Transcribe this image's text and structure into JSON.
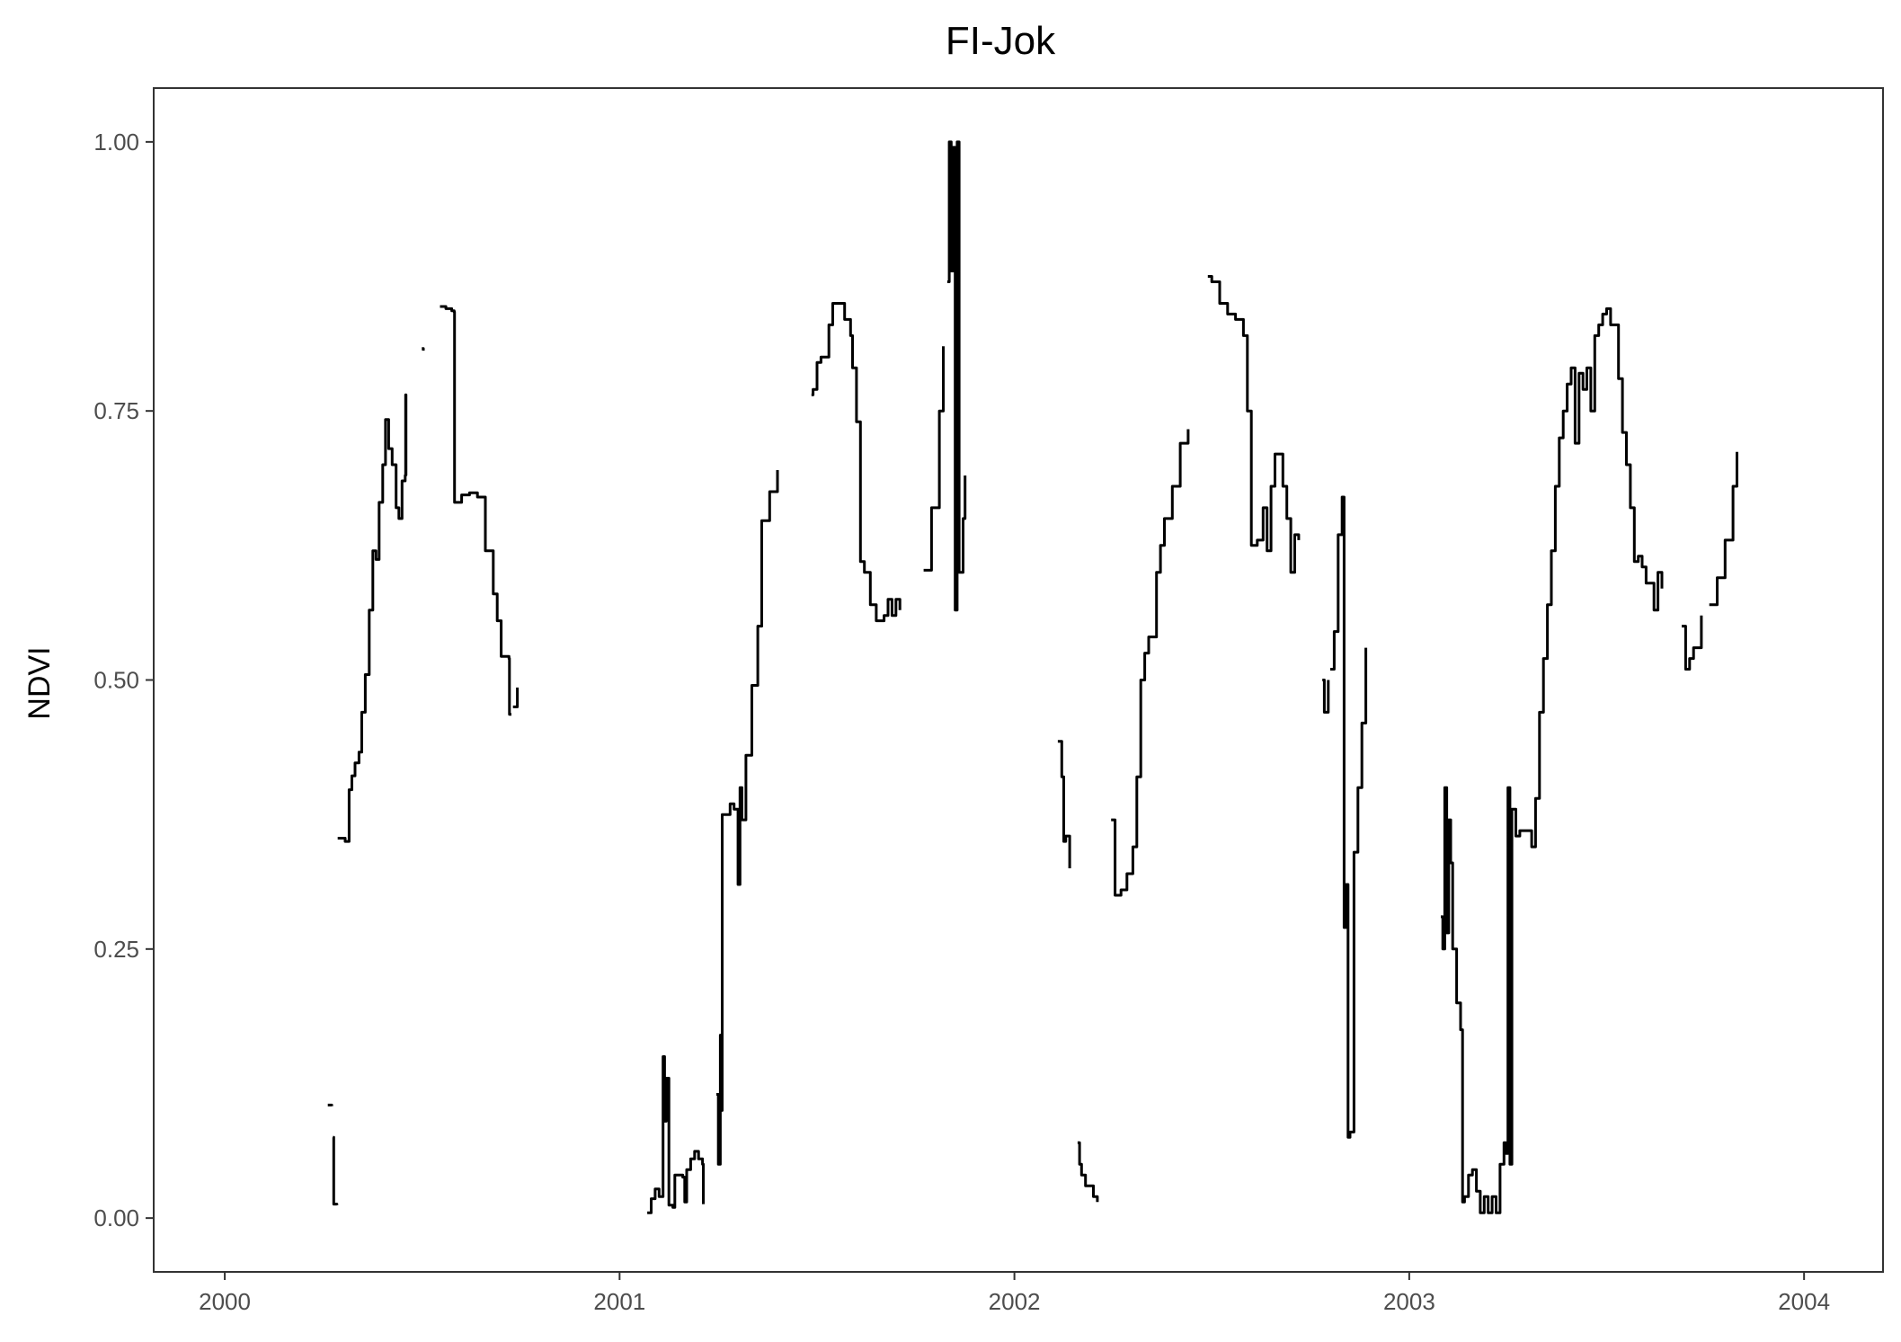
{
  "chart_data": {
    "type": "line",
    "title": "FI-Jok",
    "xlabel": "",
    "ylabel": "NDVI",
    "x_ticks": [
      "2000",
      "2001",
      "2002",
      "2003",
      "2004"
    ],
    "y_ticks": [
      "0.00",
      "0.25",
      "0.50",
      "0.75",
      "1.00"
    ],
    "xlim": [
      1999.82,
      2004.2
    ],
    "ylim": [
      -0.05,
      1.05
    ],
    "grid": false,
    "legend": "none",
    "line_color": "#000000",
    "series": [
      {
        "segments": [
          [
            [
              2000.261,
              0.105
            ],
            [
              2000.271,
              0.104
            ]
          ],
          [
            [
              2000.274,
              0.075
            ],
            [
              2000.276,
              0.013
            ],
            [
              2000.284,
              0.012
            ]
          ],
          [
            [
              2000.286,
              0.353
            ],
            [
              2000.305,
              0.35
            ],
            [
              2000.315,
              0.398
            ],
            [
              2000.322,
              0.411
            ],
            [
              2000.33,
              0.423
            ],
            [
              2000.34,
              0.433
            ],
            [
              2000.347,
              0.47
            ],
            [
              2000.356,
              0.505
            ],
            [
              2000.366,
              0.565
            ],
            [
              2000.375,
              0.62
            ],
            [
              2000.383,
              0.612
            ],
            [
              2000.391,
              0.665
            ],
            [
              2000.4,
              0.7
            ],
            [
              2000.407,
              0.742
            ],
            [
              2000.415,
              0.715
            ],
            [
              2000.424,
              0.7
            ],
            [
              2000.434,
              0.66
            ],
            [
              2000.441,
              0.65
            ],
            [
              2000.449,
              0.685
            ],
            [
              2000.457,
              0.69
            ],
            [
              2000.458,
              0.765
            ],
            [
              2000.459,
              0.69
            ]
          ],
          [
            [
              2000.499,
              0.808
            ],
            [
              2000.503,
              0.806
            ]
          ],
          [
            [
              2000.545,
              0.847
            ],
            [
              2000.56,
              0.845
            ],
            [
              2000.575,
              0.843
            ],
            [
              2000.581,
              0.842
            ],
            [
              2000.582,
              0.665
            ],
            [
              2000.6,
              0.672
            ],
            [
              2000.62,
              0.674
            ],
            [
              2000.64,
              0.67
            ],
            [
              2000.66,
              0.62
            ],
            [
              2000.68,
              0.58
            ],
            [
              2000.69,
              0.555
            ],
            [
              2000.7,
              0.522
            ],
            [
              2000.72,
              0.52
            ],
            [
              2000.721,
              0.468
            ],
            [
              2000.726,
              0.468
            ]
          ],
          [
            [
              2000.73,
              0.475
            ],
            [
              2000.741,
              0.493
            ]
          ]
        ]
      },
      {
        "segments": [
          [
            [
              2001.07,
              0.005
            ],
            [
              2001.08,
              0.018
            ],
            [
              2001.09,
              0.027
            ],
            [
              2001.1,
              0.02
            ],
            [
              2001.11,
              0.15
            ],
            [
              2001.114,
              0.09
            ],
            [
              2001.118,
              0.13
            ],
            [
              2001.125,
              0.012
            ],
            [
              2001.135,
              0.01
            ],
            [
              2001.14,
              0.04
            ],
            [
              2001.16,
              0.038
            ],
            [
              2001.165,
              0.015
            ],
            [
              2001.17,
              0.045
            ],
            [
              2001.18,
              0.055
            ],
            [
              2001.19,
              0.062
            ],
            [
              2001.2,
              0.055
            ],
            [
              2001.21,
              0.05
            ],
            [
              2001.212,
              0.013
            ]
          ],
          [
            [
              2001.245,
              0.115
            ],
            [
              2001.25,
              0.05
            ],
            [
              2001.255,
              0.17
            ],
            [
              2001.258,
              0.1
            ],
            [
              2001.26,
              0.375
            ],
            [
              2001.28,
              0.385
            ],
            [
              2001.29,
              0.38
            ],
            [
              2001.3,
              0.31
            ],
            [
              2001.305,
              0.4
            ],
            [
              2001.31,
              0.37
            ],
            [
              2001.32,
              0.43
            ],
            [
              2001.335,
              0.495
            ],
            [
              2001.35,
              0.55
            ],
            [
              2001.36,
              0.648
            ],
            [
              2001.38,
              0.675
            ],
            [
              2001.4,
              0.695
            ]
          ],
          [
            [
              2001.486,
              0.765
            ],
            [
              2001.49,
              0.77
            ],
            [
              2001.5,
              0.795
            ],
            [
              2001.51,
              0.8
            ],
            [
              2001.52,
              0.8
            ],
            [
              2001.53,
              0.83
            ],
            [
              2001.54,
              0.85
            ],
            [
              2001.56,
              0.85
            ],
            [
              2001.57,
              0.835
            ],
            [
              2001.585,
              0.82
            ],
            [
              2001.59,
              0.79
            ],
            [
              2001.6,
              0.74
            ],
            [
              2001.61,
              0.61
            ],
            [
              2001.62,
              0.6
            ],
            [
              2001.635,
              0.57
            ],
            [
              2001.65,
              0.555
            ],
            [
              2001.67,
              0.56
            ],
            [
              2001.68,
              0.575
            ],
            [
              2001.69,
              0.56
            ],
            [
              2001.7,
              0.575
            ],
            [
              2001.71,
              0.565
            ]
          ],
          [
            [
              2001.77,
              0.602
            ],
            [
              2001.79,
              0.66
            ],
            [
              2001.81,
              0.75
            ],
            [
              2001.82,
              0.81
            ]
          ],
          [
            [
              2001.83,
              0.87
            ],
            [
              2001.835,
              1.0
            ],
            [
              2001.84,
              0.88
            ],
            [
              2001.845,
              0.995
            ],
            [
              2001.85,
              0.565
            ],
            [
              2001.855,
              1.0
            ],
            [
              2001.86,
              0.6
            ],
            [
              2001.87,
              0.65
            ],
            [
              2001.875,
              0.69
            ]
          ]
        ]
      },
      {
        "segments": [
          [
            [
              2002.11,
              0.443
            ],
            [
              2002.12,
              0.41
            ],
            [
              2002.125,
              0.35
            ],
            [
              2002.13,
              0.355
            ],
            [
              2002.14,
              0.325
            ]
          ],
          [
            [
              2002.16,
              0.07
            ],
            [
              2002.165,
              0.05
            ],
            [
              2002.17,
              0.04
            ],
            [
              2002.18,
              0.03
            ],
            [
              2002.19,
              0.03
            ],
            [
              2002.2,
              0.02
            ],
            [
              2002.21,
              0.015
            ]
          ],
          [
            [
              2002.245,
              0.37
            ],
            [
              2002.255,
              0.3
            ],
            [
              2002.27,
              0.305
            ],
            [
              2002.285,
              0.32
            ],
            [
              2002.3,
              0.345
            ],
            [
              2002.31,
              0.41
            ],
            [
              2002.32,
              0.5
            ],
            [
              2002.33,
              0.525
            ],
            [
              2002.34,
              0.54
            ],
            [
              2002.36,
              0.6
            ],
            [
              2002.37,
              0.625
            ],
            [
              2002.38,
              0.65
            ],
            [
              2002.4,
              0.68
            ],
            [
              2002.42,
              0.72
            ],
            [
              2002.44,
              0.733
            ]
          ],
          [
            [
              2002.49,
              0.875
            ],
            [
              2002.5,
              0.87
            ],
            [
              2002.52,
              0.85
            ],
            [
              2002.54,
              0.84
            ],
            [
              2002.56,
              0.835
            ],
            [
              2002.58,
              0.82
            ],
            [
              2002.59,
              0.75
            ],
            [
              2002.6,
              0.625
            ],
            [
              2002.615,
              0.63
            ],
            [
              2002.63,
              0.66
            ],
            [
              2002.64,
              0.62
            ],
            [
              2002.65,
              0.68
            ],
            [
              2002.66,
              0.71
            ],
            [
              2002.67,
              0.71
            ],
            [
              2002.68,
              0.68
            ],
            [
              2002.69,
              0.65
            ],
            [
              2002.7,
              0.6
            ],
            [
              2002.71,
              0.635
            ],
            [
              2002.72,
              0.63
            ]
          ],
          [
            [
              2002.78,
              0.5
            ],
            [
              2002.785,
              0.47
            ],
            [
              2002.79,
              0.47
            ],
            [
              2002.795,
              0.5
            ]
          ],
          [
            [
              2002.8,
              0.51
            ],
            [
              2002.81,
              0.545
            ],
            [
              2002.82,
              0.635
            ],
            [
              2002.83,
              0.67
            ],
            [
              2002.835,
              0.27
            ],
            [
              2002.84,
              0.31
            ],
            [
              2002.845,
              0.075
            ],
            [
              2002.85,
              0.08
            ],
            [
              2002.86,
              0.34
            ],
            [
              2002.87,
              0.4
            ],
            [
              2002.88,
              0.46
            ],
            [
              2002.89,
              0.53
            ]
          ]
        ]
      },
      {
        "segments": [
          [
            [
              2003.08,
              0.28
            ],
            [
              2003.085,
              0.25
            ],
            [
              2003.09,
              0.4
            ],
            [
              2003.095,
              0.265
            ],
            [
              2003.1,
              0.37
            ],
            [
              2003.105,
              0.33
            ],
            [
              2003.11,
              0.25
            ],
            [
              2003.12,
              0.2
            ],
            [
              2003.13,
              0.175
            ],
            [
              2003.135,
              0.015
            ],
            [
              2003.14,
              0.02
            ],
            [
              2003.15,
              0.04
            ],
            [
              2003.16,
              0.045
            ],
            [
              2003.17,
              0.025
            ],
            [
              2003.18,
              0.005
            ],
            [
              2003.19,
              0.02
            ],
            [
              2003.2,
              0.005
            ],
            [
              2003.21,
              0.02
            ],
            [
              2003.22,
              0.005
            ],
            [
              2003.23,
              0.05
            ],
            [
              2003.24,
              0.07
            ],
            [
              2003.245,
              0.06
            ],
            [
              2003.25,
              0.4
            ],
            [
              2003.255,
              0.05
            ],
            [
              2003.26,
              0.38
            ],
            [
              2003.27,
              0.355
            ],
            [
              2003.28,
              0.36
            ],
            [
              2003.29,
              0.36
            ],
            [
              2003.3,
              0.36
            ],
            [
              2003.31,
              0.345
            ],
            [
              2003.32,
              0.39
            ],
            [
              2003.33,
              0.47
            ],
            [
              2003.34,
              0.52
            ],
            [
              2003.35,
              0.57
            ],
            [
              2003.36,
              0.62
            ],
            [
              2003.37,
              0.68
            ],
            [
              2003.38,
              0.725
            ],
            [
              2003.39,
              0.75
            ],
            [
              2003.4,
              0.775
            ],
            [
              2003.41,
              0.79
            ],
            [
              2003.42,
              0.72
            ],
            [
              2003.43,
              0.785
            ],
            [
              2003.44,
              0.77
            ],
            [
              2003.45,
              0.79
            ],
            [
              2003.46,
              0.75
            ],
            [
              2003.47,
              0.82
            ],
            [
              2003.48,
              0.83
            ],
            [
              2003.49,
              0.84
            ],
            [
              2003.5,
              0.845
            ],
            [
              2003.51,
              0.83
            ],
            [
              2003.52,
              0.83
            ],
            [
              2003.53,
              0.78
            ],
            [
              2003.54,
              0.73
            ],
            [
              2003.55,
              0.7
            ],
            [
              2003.56,
              0.66
            ],
            [
              2003.57,
              0.61
            ],
            [
              2003.58,
              0.615
            ],
            [
              2003.59,
              0.605
            ],
            [
              2003.6,
              0.59
            ],
            [
              2003.61,
              0.59
            ],
            [
              2003.62,
              0.565
            ],
            [
              2003.63,
              0.6
            ],
            [
              2003.64,
              0.585
            ]
          ],
          [
            [
              2003.69,
              0.55
            ],
            [
              2003.7,
              0.51
            ],
            [
              2003.71,
              0.52
            ],
            [
              2003.72,
              0.53
            ],
            [
              2003.74,
              0.56
            ]
          ],
          [
            [
              2003.76,
              0.57
            ],
            [
              2003.78,
              0.595
            ],
            [
              2003.8,
              0.63
            ],
            [
              2003.82,
              0.68
            ],
            [
              2003.83,
              0.712
            ]
          ]
        ]
      }
    ]
  }
}
